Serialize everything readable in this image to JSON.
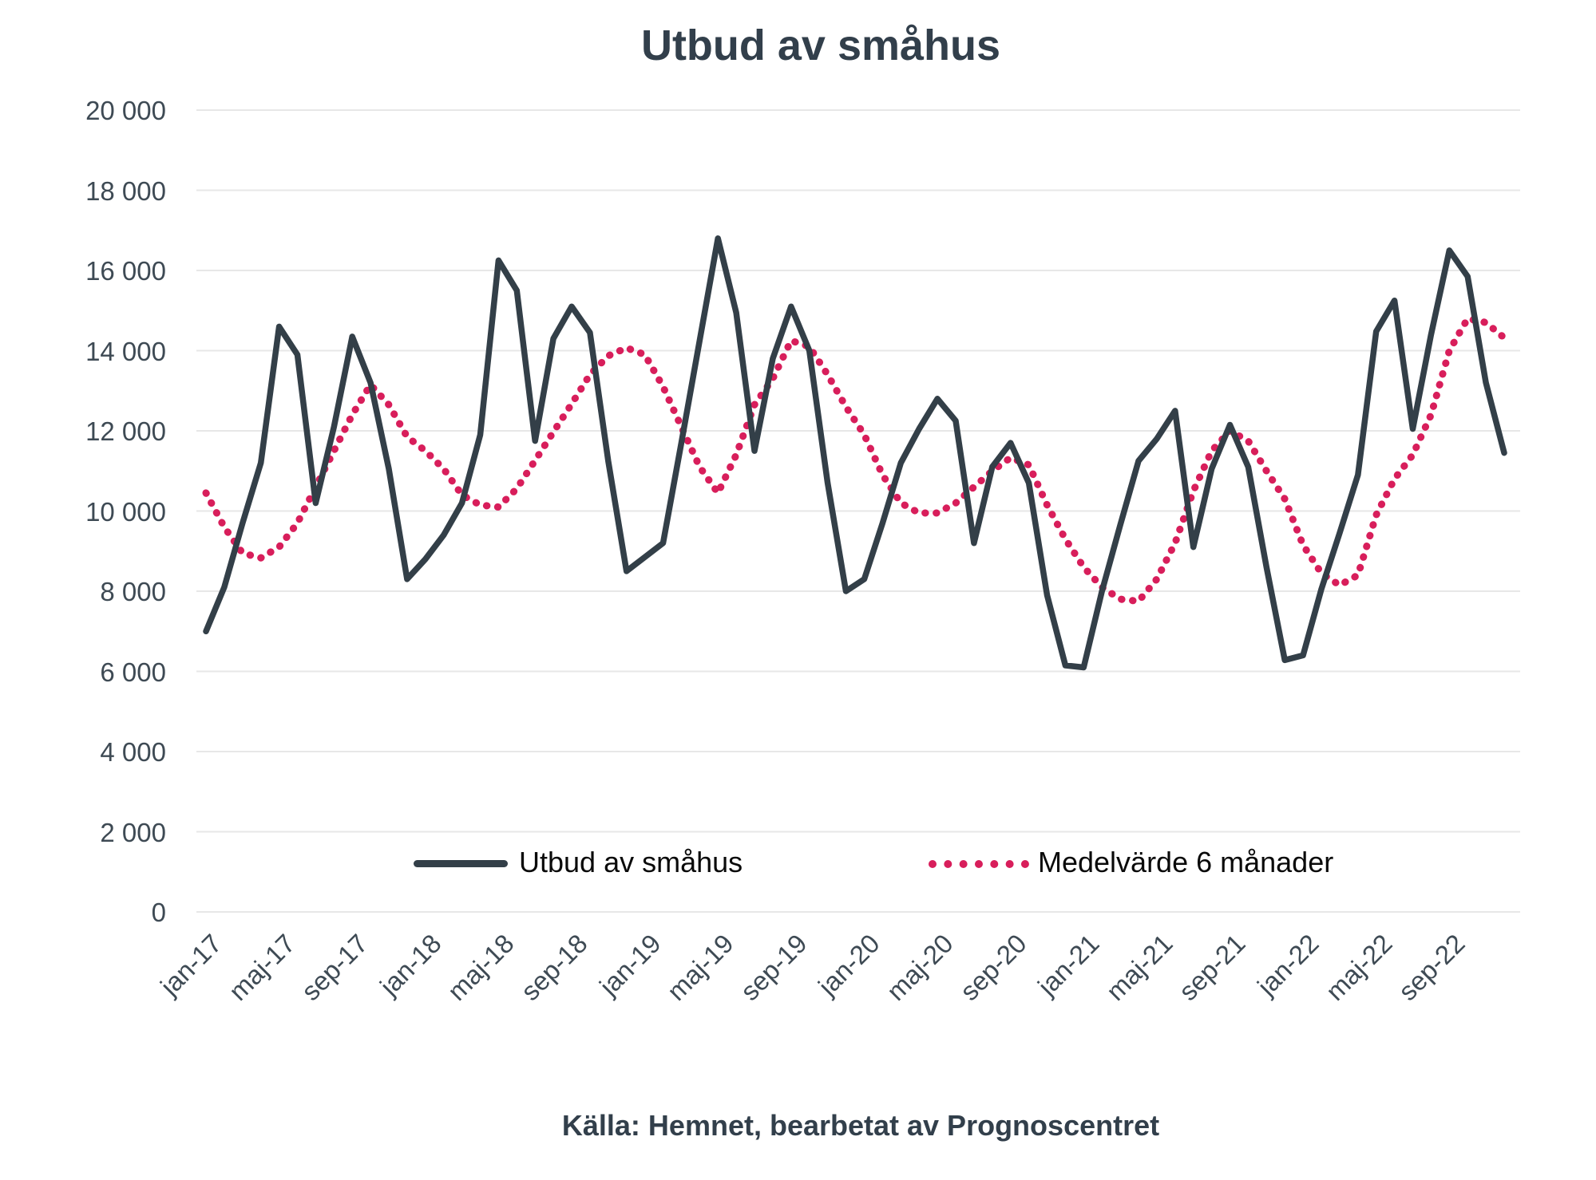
{
  "title": "Utbud av småhus",
  "source": "Källa: Hemnet, bearbetat av Prognoscentret",
  "legend": {
    "series1": "Utbud av småhus",
    "series2": "Medelvärde 6 månader"
  },
  "colors": {
    "series1": "#333f48",
    "series2": "#d81e5b",
    "gridline": "#e7e7e7",
    "axis_text": "#3e4a54",
    "title_text": "#323f4b"
  },
  "chart_data": {
    "type": "line",
    "title": "Utbud av småhus",
    "xlabel": "",
    "ylabel": "",
    "ylim": [
      0,
      20000
    ],
    "ytick_step": 2000,
    "ytick_labels": [
      "0",
      "2 000",
      "4 000",
      "6 000",
      "8 000",
      "10 000",
      "12 000",
      "14 000",
      "16 000",
      "18 000",
      "20 000"
    ],
    "grid": "horizontal",
    "legend_position": "inside-bottom",
    "x": [
      "jan-17",
      "feb-17",
      "mar-17",
      "apr-17",
      "maj-17",
      "jun-17",
      "jul-17",
      "aug-17",
      "sep-17",
      "okt-17",
      "nov-17",
      "dec-17",
      "jan-18",
      "feb-18",
      "mar-18",
      "apr-18",
      "maj-18",
      "jun-18",
      "jul-18",
      "aug-18",
      "sep-18",
      "okt-18",
      "nov-18",
      "dec-18",
      "jan-19",
      "feb-19",
      "mar-19",
      "apr-19",
      "maj-19",
      "jun-19",
      "jul-19",
      "aug-19",
      "sep-19",
      "okt-19",
      "nov-19",
      "dec-19",
      "jan-20",
      "feb-20",
      "mar-20",
      "apr-20",
      "maj-20",
      "jun-20",
      "jul-20",
      "aug-20",
      "sep-20",
      "okt-20",
      "nov-20",
      "dec-20",
      "jan-21",
      "feb-21",
      "mar-21",
      "apr-21",
      "maj-21",
      "jun-21",
      "jul-21",
      "aug-21",
      "sep-21",
      "okt-21",
      "nov-21",
      "dec-21",
      "jan-22",
      "feb-22",
      "mar-22",
      "apr-22",
      "maj-22",
      "jun-22",
      "jul-22",
      "aug-22",
      "sep-22",
      "okt-22",
      "nov-22",
      "dec-22"
    ],
    "x_tick_labels": [
      "jan-17",
      "maj-17",
      "sep-17",
      "jan-18",
      "maj-18",
      "sep-18",
      "jan-19",
      "maj-19",
      "sep-19",
      "jan-20",
      "maj-20",
      "sep-20",
      "jan-21",
      "maj-21",
      "sep-21",
      "jan-22",
      "maj-22",
      "sep-22"
    ],
    "x_tick_every": 4,
    "series": [
      {
        "name": "Utbud av småhus",
        "style": "solid",
        "values": [
          7000,
          8100,
          9700,
          11200,
          14600,
          13900,
          10200,
          12100,
          14350,
          13200,
          11050,
          8300,
          8800,
          9400,
          10200,
          11900,
          16250,
          15500,
          11750,
          14300,
          15100,
          14450,
          11250,
          8500,
          8850,
          9200,
          11700,
          14250,
          16800,
          14950,
          11500,
          13800,
          15100,
          14000,
          10700,
          8000,
          8300,
          9700,
          11200,
          12050,
          12800,
          12250,
          9200,
          11100,
          11700,
          10700,
          7900,
          6150,
          6100,
          8000,
          9650,
          11250,
          11800,
          12500,
          9100,
          11050,
          12150,
          11100,
          8600,
          6280,
          6400,
          8050,
          9450,
          10900,
          14480,
          15250,
          12050,
          14400,
          16500,
          15850,
          13200,
          11450
        ]
      },
      {
        "name": "Medelvärde 6 månader",
        "style": "dotted",
        "values": [
          10450,
          9600,
          8950,
          8830,
          9100,
          9700,
          10600,
          11500,
          12400,
          13150,
          12650,
          11850,
          11500,
          11050,
          10400,
          10150,
          10100,
          10560,
          11260,
          11970,
          12670,
          13400,
          13870,
          14070,
          13900,
          13100,
          12100,
          11100,
          10450,
          11400,
          12650,
          13300,
          14250,
          14100,
          13400,
          12600,
          11900,
          10900,
          10200,
          9950,
          9950,
          10200,
          10600,
          11000,
          11330,
          11150,
          10150,
          9300,
          8600,
          8100,
          7800,
          7750,
          8300,
          9200,
          10500,
          11500,
          12000,
          11750,
          11000,
          10300,
          9150,
          8450,
          8150,
          8400,
          9900,
          10800,
          11400,
          12400,
          14000,
          14800,
          14700,
          14320
        ]
      }
    ]
  }
}
